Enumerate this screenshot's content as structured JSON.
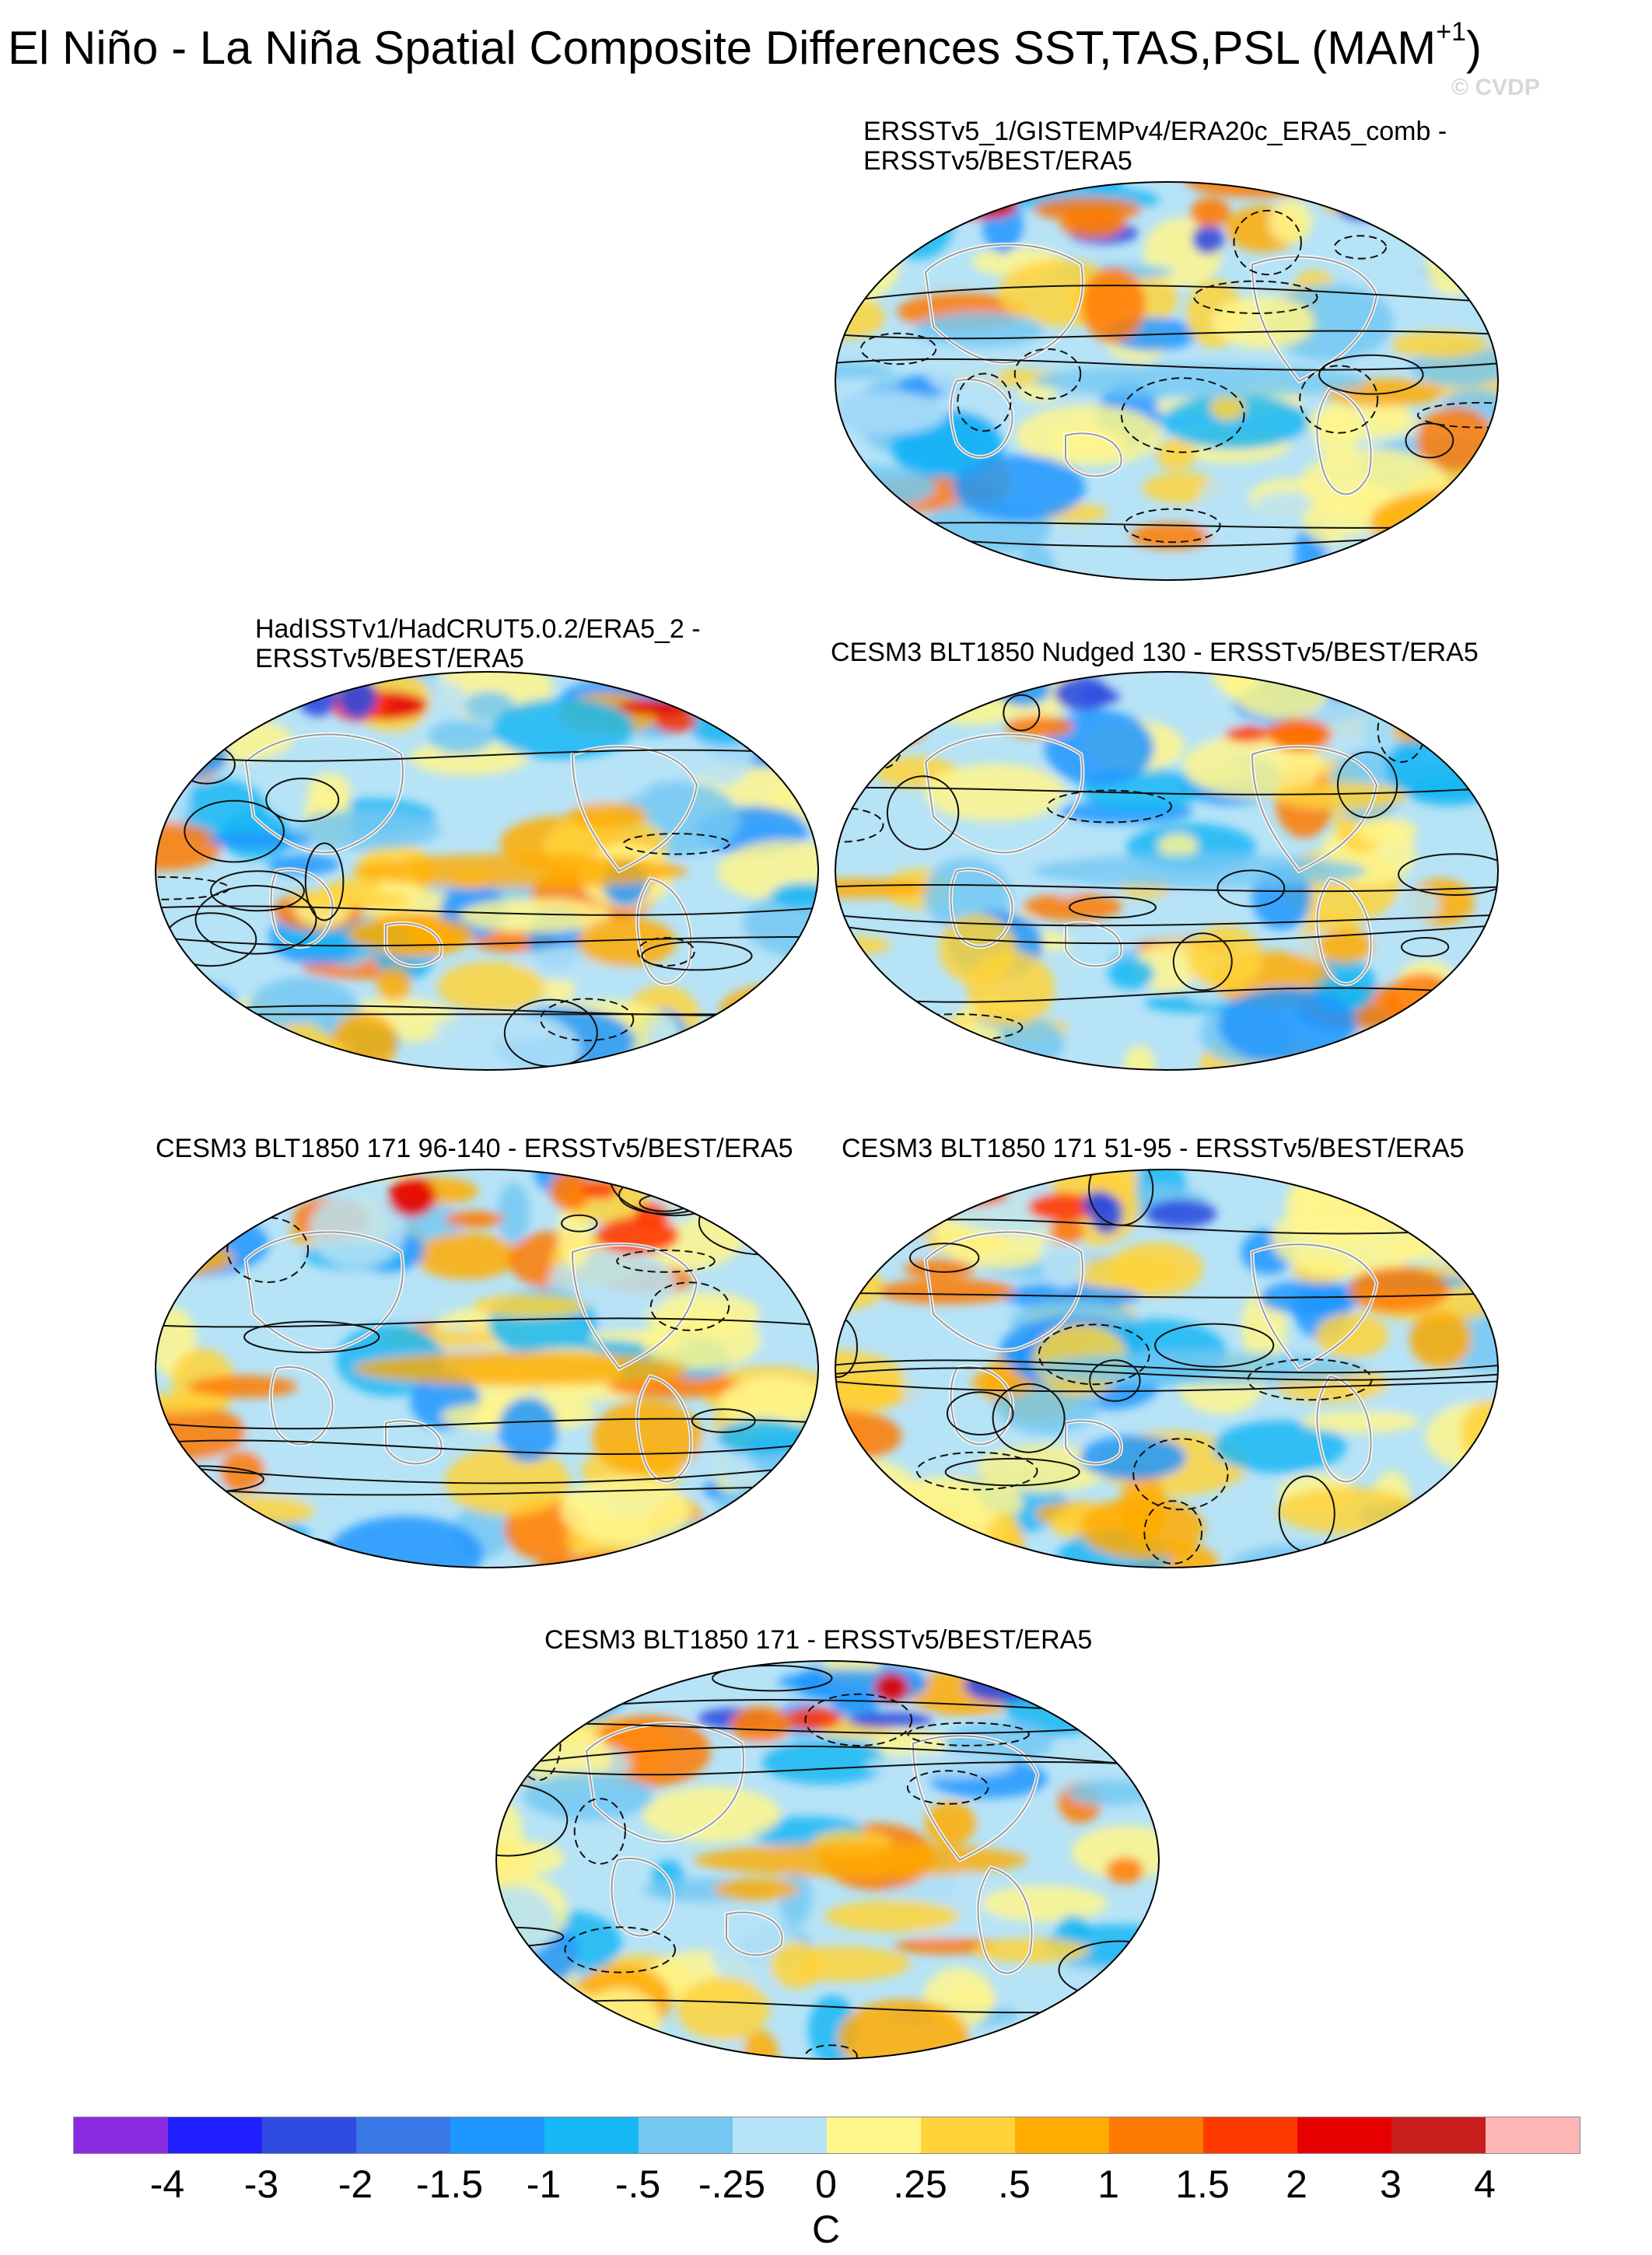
{
  "figure": {
    "title_main": "El Niño - La Niña Spatial Composite Differences SST,TAS,PSL (MAM",
    "title_sup": "+1",
    "title_close": ")",
    "watermark": "© CVDP"
  },
  "panels": [
    {
      "id": "p1",
      "title_line1": "ERSSTv5_1/GISTEMPv4/ERA20c_ERA5_comb -",
      "title_line2": "ERSSTv5/BEST/ERA5",
      "seed": 11
    },
    {
      "id": "p2",
      "title_line1": "HadISSTv1/HadCRUT5.0.2/ERA5_2 -",
      "title_line2": "ERSSTv5/BEST/ERA5",
      "seed": 23
    },
    {
      "id": "p3",
      "title_line1": "CESM3 BLT1850 Nudged 130 - ERSSTv5/BEST/ERA5",
      "title_line2": "",
      "seed": 37
    },
    {
      "id": "p4",
      "title_line1": "CESM3 BLT1850 171 96-140 - ERSSTv5/BEST/ERA5",
      "title_line2": "",
      "seed": 41
    },
    {
      "id": "p5",
      "title_line1": "CESM3 BLT1850 171 51-95 - ERSSTv5/BEST/ERA5",
      "title_line2": "",
      "seed": 53
    },
    {
      "id": "p6",
      "title_line1": "CESM3 BLT1850 171 - ERSSTv5/BEST/ERA5",
      "title_line2": "",
      "seed": 67
    }
  ],
  "colorbar": {
    "colors": [
      "#8a2be2",
      "#1f1fff",
      "#2e4de0",
      "#3a78e8",
      "#1e96ff",
      "#17b7f5",
      "#74c8f2",
      "#b7e3f7",
      "#fff68c",
      "#ffd43a",
      "#ffab00",
      "#ff7a00",
      "#ff3a00",
      "#e60000",
      "#c81e1e",
      "#ffb6b6"
    ],
    "tick_labels": [
      "-4",
      "-3",
      "-2",
      "-1.5",
      "-1",
      "-.5",
      "-.25",
      "0",
      ".25",
      ".5",
      "1",
      "1.5",
      "2",
      "3",
      "4"
    ],
    "units": "C"
  }
}
